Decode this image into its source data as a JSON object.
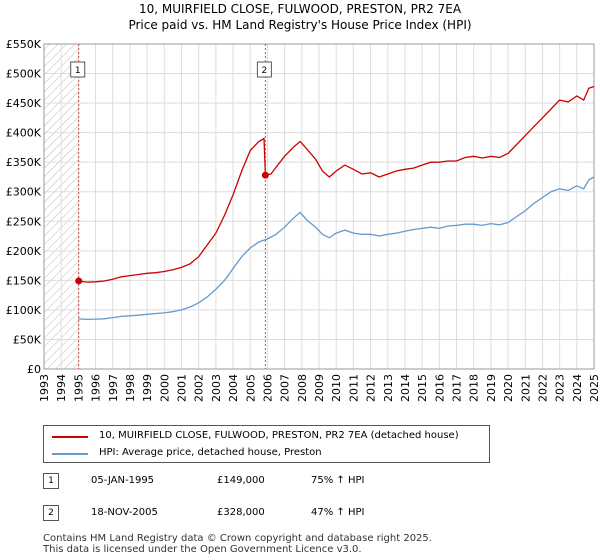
{
  "chart_data": {
    "type": "line",
    "title": "10, MUIRFIELD CLOSE, FULWOOD, PRESTON, PR2 7EA",
    "subtitle": "Price paid vs. HM Land Registry's House Price Index (HPI)",
    "xlim": [
      1993,
      2025
    ],
    "ylim": [
      0,
      550000
    ],
    "x_ticks": [
      "1993",
      "1994",
      "1995",
      "1996",
      "1997",
      "1998",
      "1999",
      "2000",
      "2001",
      "2002",
      "2003",
      "2004",
      "2005",
      "2006",
      "2007",
      "2008",
      "2009",
      "2010",
      "2011",
      "2012",
      "2013",
      "2014",
      "2015",
      "2016",
      "2017",
      "2018",
      "2019",
      "2020",
      "2021",
      "2022",
      "2023",
      "2024",
      "2025"
    ],
    "y_ticks": [
      {
        "value": 0,
        "label": "£0"
      },
      {
        "value": 50000,
        "label": "£50K"
      },
      {
        "value": 100000,
        "label": "£100K"
      },
      {
        "value": 150000,
        "label": "£150K"
      },
      {
        "value": 200000,
        "label": "£200K"
      },
      {
        "value": 250000,
        "label": "£250K"
      },
      {
        "value": 300000,
        "label": "£300K"
      },
      {
        "value": 350000,
        "label": "£350K"
      },
      {
        "value": 400000,
        "label": "£400K"
      },
      {
        "value": 450000,
        "label": "£450K"
      },
      {
        "value": 500000,
        "label": "£500K"
      },
      {
        "value": 550000,
        "label": "£550K"
      }
    ],
    "hatch_before": 1995.0,
    "series": [
      {
        "name": "10, MUIRFIELD CLOSE, FULWOOD, PRESTON, PR2 7EA (detached house)",
        "color": "#cc0000",
        "points": [
          [
            1995.0,
            149000
          ],
          [
            1995.5,
            147000
          ],
          [
            1996.0,
            147500
          ],
          [
            1996.5,
            149000
          ],
          [
            1997.0,
            152000
          ],
          [
            1997.5,
            156000
          ],
          [
            1998.0,
            158000
          ],
          [
            1998.5,
            160000
          ],
          [
            1999.0,
            162000
          ],
          [
            1999.5,
            163000
          ],
          [
            2000.0,
            165000
          ],
          [
            2000.5,
            168000
          ],
          [
            2001.0,
            172000
          ],
          [
            2001.5,
            178000
          ],
          [
            2002.0,
            190000
          ],
          [
            2002.5,
            210000
          ],
          [
            2003.0,
            230000
          ],
          [
            2003.5,
            260000
          ],
          [
            2004.0,
            295000
          ],
          [
            2004.5,
            335000
          ],
          [
            2005.0,
            370000
          ],
          [
            2005.5,
            385000
          ],
          [
            2005.8,
            390000
          ],
          [
            2005.88,
            328000
          ],
          [
            2006.2,
            330000
          ],
          [
            2006.6,
            345000
          ],
          [
            2007.0,
            360000
          ],
          [
            2007.5,
            375000
          ],
          [
            2007.9,
            385000
          ],
          [
            2008.3,
            372000
          ],
          [
            2008.8,
            355000
          ],
          [
            2009.2,
            335000
          ],
          [
            2009.6,
            325000
          ],
          [
            2010.0,
            335000
          ],
          [
            2010.5,
            345000
          ],
          [
            2011.0,
            338000
          ],
          [
            2011.5,
            330000
          ],
          [
            2012.0,
            332000
          ],
          [
            2012.5,
            325000
          ],
          [
            2013.0,
            330000
          ],
          [
            2013.5,
            335000
          ],
          [
            2014.0,
            338000
          ],
          [
            2014.5,
            340000
          ],
          [
            2015.0,
            345000
          ],
          [
            2015.5,
            350000
          ],
          [
            2016.0,
            350000
          ],
          [
            2016.5,
            352000
          ],
          [
            2017.0,
            352000
          ],
          [
            2017.5,
            358000
          ],
          [
            2018.0,
            360000
          ],
          [
            2018.5,
            357000
          ],
          [
            2019.0,
            360000
          ],
          [
            2019.5,
            358000
          ],
          [
            2020.0,
            365000
          ],
          [
            2020.5,
            380000
          ],
          [
            2021.0,
            395000
          ],
          [
            2021.5,
            410000
          ],
          [
            2022.0,
            425000
          ],
          [
            2022.5,
            440000
          ],
          [
            2023.0,
            455000
          ],
          [
            2023.5,
            452000
          ],
          [
            2024.0,
            462000
          ],
          [
            2024.4,
            455000
          ],
          [
            2024.7,
            475000
          ],
          [
            2025.0,
            478000
          ]
        ]
      },
      {
        "name": "HPI: Average price, detached house, Preston",
        "color": "#6699cc",
        "points": [
          [
            1995.0,
            85000
          ],
          [
            1995.5,
            84000
          ],
          [
            1996.0,
            84500
          ],
          [
            1996.5,
            85000
          ],
          [
            1997.0,
            87000
          ],
          [
            1997.5,
            89000
          ],
          [
            1998.0,
            90000
          ],
          [
            1998.5,
            91000
          ],
          [
            1999.0,
            92500
          ],
          [
            1999.5,
            94000
          ],
          [
            2000.0,
            95000
          ],
          [
            2000.5,
            97000
          ],
          [
            2001.0,
            100000
          ],
          [
            2001.5,
            105000
          ],
          [
            2002.0,
            112000
          ],
          [
            2002.5,
            122000
          ],
          [
            2003.0,
            135000
          ],
          [
            2003.5,
            150000
          ],
          [
            2004.0,
            170000
          ],
          [
            2004.5,
            190000
          ],
          [
            2005.0,
            205000
          ],
          [
            2005.5,
            215000
          ],
          [
            2006.0,
            220000
          ],
          [
            2006.5,
            228000
          ],
          [
            2007.0,
            240000
          ],
          [
            2007.5,
            255000
          ],
          [
            2007.9,
            265000
          ],
          [
            2008.3,
            252000
          ],
          [
            2008.8,
            240000
          ],
          [
            2009.2,
            228000
          ],
          [
            2009.6,
            222000
          ],
          [
            2010.0,
            230000
          ],
          [
            2010.5,
            235000
          ],
          [
            2011.0,
            230000
          ],
          [
            2011.5,
            228000
          ],
          [
            2012.0,
            228000
          ],
          [
            2012.5,
            225000
          ],
          [
            2013.0,
            228000
          ],
          [
            2013.5,
            230000
          ],
          [
            2014.0,
            233000
          ],
          [
            2014.5,
            236000
          ],
          [
            2015.0,
            238000
          ],
          [
            2015.5,
            240000
          ],
          [
            2016.0,
            238000
          ],
          [
            2016.5,
            242000
          ],
          [
            2017.0,
            243000
          ],
          [
            2017.5,
            245000
          ],
          [
            2018.0,
            245000
          ],
          [
            2018.5,
            243000
          ],
          [
            2019.0,
            246000
          ],
          [
            2019.5,
            244000
          ],
          [
            2020.0,
            248000
          ],
          [
            2020.5,
            258000
          ],
          [
            2021.0,
            268000
          ],
          [
            2021.5,
            280000
          ],
          [
            2022.0,
            290000
          ],
          [
            2022.5,
            300000
          ],
          [
            2023.0,
            305000
          ],
          [
            2023.5,
            302000
          ],
          [
            2024.0,
            310000
          ],
          [
            2024.4,
            305000
          ],
          [
            2024.7,
            320000
          ],
          [
            2025.0,
            325000
          ]
        ]
      }
    ],
    "markers": [
      {
        "label": "1",
        "x": 1995.02,
        "y": 149000
      },
      {
        "label": "2",
        "x": 2005.88,
        "y": 328000
      }
    ],
    "legend_position": "below"
  },
  "legend": {
    "items": [
      {
        "label": "10, MUIRFIELD CLOSE, FULWOOD, PRESTON, PR2 7EA (detached house)",
        "color": "#cc0000"
      },
      {
        "label": "HPI: Average price, detached house, Preston",
        "color": "#6699cc"
      }
    ]
  },
  "transactions": [
    {
      "num": "1",
      "date": "05-JAN-1995",
      "price": "£149,000",
      "hpi": "75% ↑ HPI"
    },
    {
      "num": "2",
      "date": "18-NOV-2005",
      "price": "£328,000",
      "hpi": "47% ↑ HPI"
    }
  ],
  "footer": {
    "line1": "Contains HM Land Registry data © Crown copyright and database right 2025.",
    "line2": "This data is licensed under the Open Government Licence v3.0."
  }
}
